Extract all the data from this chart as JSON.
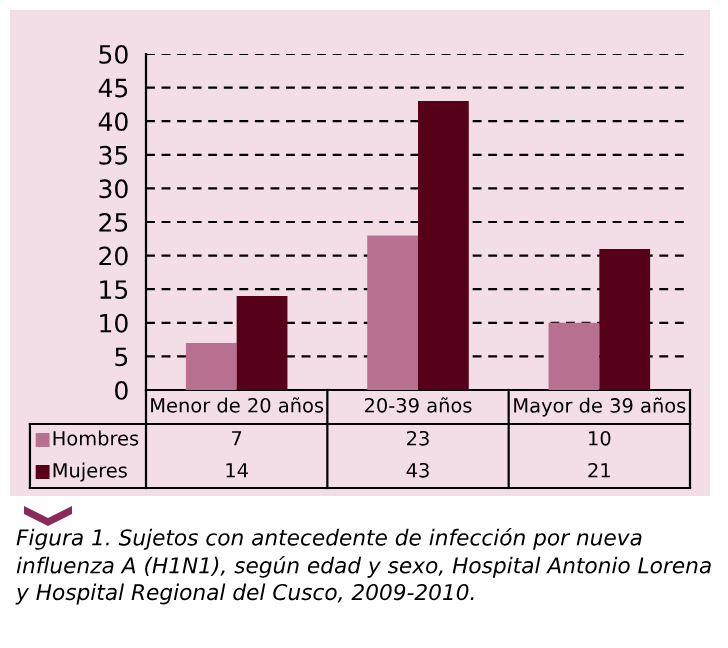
{
  "chart_data": {
    "type": "bar",
    "categories": [
      "Menor de 20 años",
      "20-39 años",
      "Mayor de 39 años"
    ],
    "series": [
      {
        "name": "Hombres",
        "color": "#b87090",
        "values": [
          7,
          23,
          10
        ]
      },
      {
        "name": "Mujeres",
        "color": "#56001a",
        "values": [
          14,
          43,
          21
        ]
      }
    ],
    "ylim": [
      0,
      50
    ],
    "yticks": [
      0,
      5,
      10,
      15,
      20,
      25,
      30,
      35,
      40,
      45,
      50
    ],
    "grid": "y",
    "legend": "bottom",
    "data_labels": true,
    "annotations": [
      "Figura 1. Sujetos con antecedente de infección por nueva influenza A (H1N1), según edad y sexo, Hospital Antonio Lorena y Hospital Regional del Cusco, 2009-2010."
    ]
  }
}
